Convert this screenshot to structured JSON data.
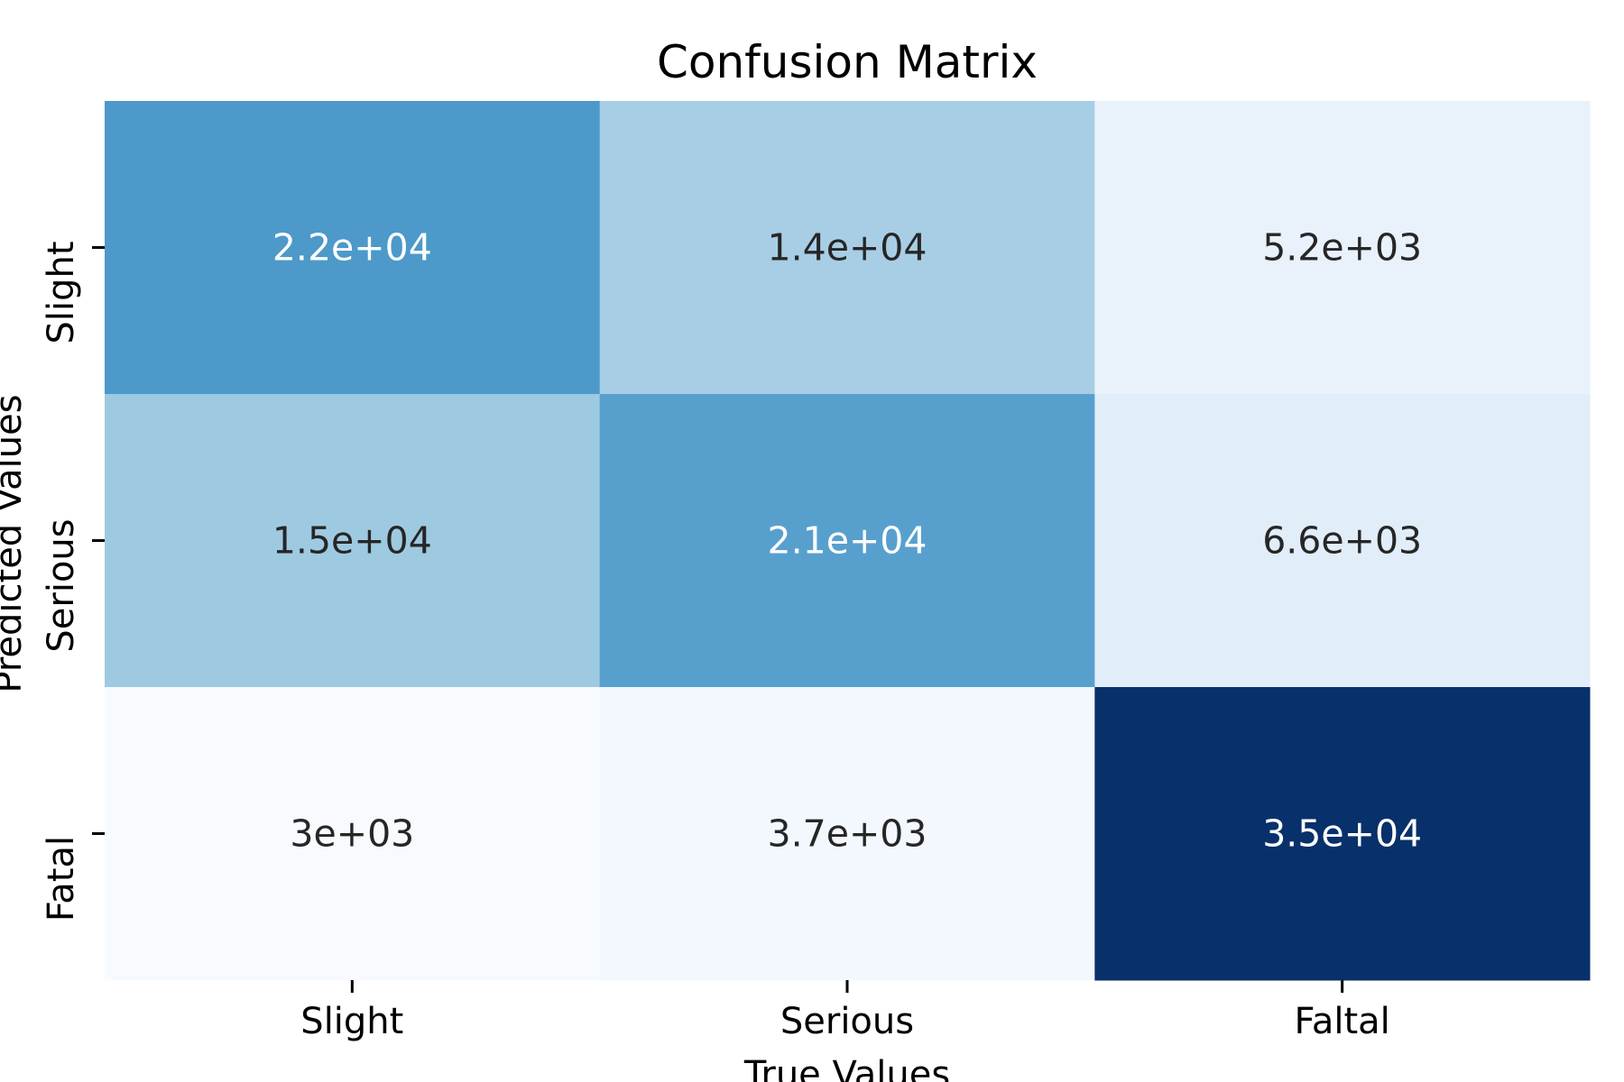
{
  "chart_data": {
    "type": "heatmap",
    "title": "Confusion Matrix",
    "xlabel": "True Values",
    "ylabel": "Predicted Values",
    "x_categories": [
      "Slight",
      "Serious",
      "Faltal"
    ],
    "y_categories": [
      "Slight",
      "Serious",
      "Fatal"
    ],
    "values": [
      [
        22000,
        14000,
        5200
      ],
      [
        15000,
        21000,
        6600
      ],
      [
        3000,
        3700,
        35000
      ]
    ],
    "cell_labels": [
      [
        "2.2e+04",
        "1.4e+04",
        "5.2e+03"
      ],
      [
        "1.5e+04",
        "2.1e+04",
        "6.6e+03"
      ],
      [
        "3e+03",
        "3.7e+03",
        "3.5e+04"
      ]
    ],
    "colormap": "Blues",
    "colorbar": false,
    "grid": false
  }
}
